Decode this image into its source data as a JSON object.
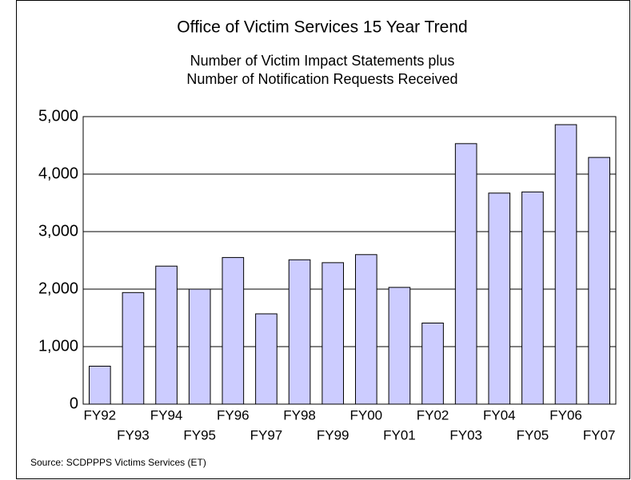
{
  "chart_data": {
    "type": "bar",
    "title": "Office of Victim Services 15 Year Trend",
    "subtitle": [
      "Number of Victim Impact Statements plus",
      "Number of Notification Requests Received"
    ],
    "categories": [
      "FY92",
      "FY93",
      "FY94",
      "FY95",
      "FY96",
      "FY97",
      "FY98",
      "FY99",
      "FY00",
      "FY01",
      "FY02",
      "FY03",
      "FY04",
      "FY05",
      "FY06",
      "FY07"
    ],
    "values": [
      660,
      1940,
      2400,
      2000,
      2550,
      1570,
      2510,
      2460,
      2600,
      2030,
      1410,
      4530,
      3670,
      3690,
      4860,
      4290
    ],
    "color": "#ccccff",
    "ylim": [
      0,
      5000
    ],
    "yticks": [
      0,
      {
        "value": 1000,
        "label": "1,000"
      },
      {
        "value": 2000,
        "label": "2,000"
      },
      {
        "value": 3000,
        "label": "3,000"
      },
      {
        "value": 4000,
        "label": "4,000"
      },
      {
        "value": 5000,
        "label": "5,000"
      }
    ],
    "grid": true,
    "source": "Source:  SCDPPPS Victims Services (ET)"
  }
}
